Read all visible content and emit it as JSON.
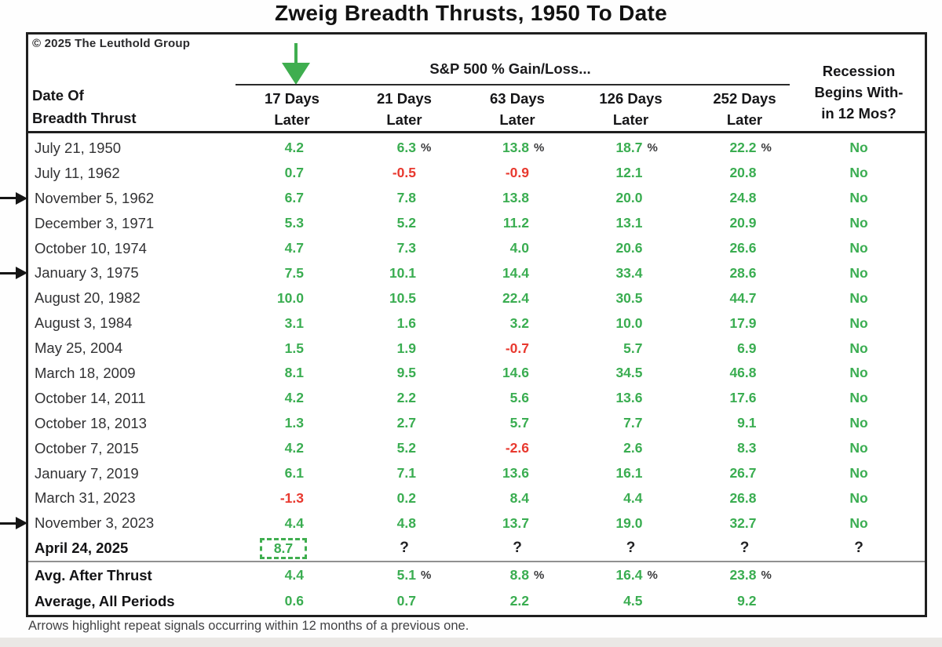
{
  "page": {
    "title": "Zweig Breadth Thrusts, 1950 To Date",
    "copyright": "© 2025 The Leuthold Group",
    "footnote": "Arrows highlight repeat signals occurring within 12 months of a previous one."
  },
  "colors": {
    "green": "#3aad51",
    "red": "#e8392f",
    "arrow_green": "#3fae4f"
  },
  "table": {
    "row_header": [
      "Date Of",
      "Breadth Thrust"
    ],
    "group_header": "S&P 500 % Gain/Loss...",
    "day_columns": [
      [
        "17 Days",
        "Later"
      ],
      [
        "21 Days",
        "Later"
      ],
      [
        "63 Days",
        "Later"
      ],
      [
        "126 Days",
        "Later"
      ],
      [
        "252 Days",
        "Later"
      ]
    ],
    "recession_header": [
      "Recession",
      "Begins With-",
      "in 12 Mos?"
    ],
    "rows": [
      {
        "date": "July 21, 1950",
        "arrow": false,
        "bold": false,
        "boxed": false,
        "values": [
          "4.2",
          "6.3",
          "13.8",
          "18.7",
          "22.2"
        ],
        "pct": [
          false,
          true,
          true,
          true,
          true
        ],
        "recession": "No"
      },
      {
        "date": "July 11, 1962",
        "arrow": false,
        "bold": false,
        "boxed": false,
        "values": [
          "0.7",
          "-0.5",
          "-0.9",
          "12.1",
          "20.8"
        ],
        "pct": [
          false,
          false,
          false,
          false,
          false
        ],
        "recession": "No"
      },
      {
        "date": "November 5, 1962",
        "arrow": true,
        "bold": false,
        "boxed": false,
        "values": [
          "6.7",
          "7.8",
          "13.8",
          "20.0",
          "24.8"
        ],
        "pct": [
          false,
          false,
          false,
          false,
          false
        ],
        "recession": "No"
      },
      {
        "date": "December 3, 1971",
        "arrow": false,
        "bold": false,
        "boxed": false,
        "values": [
          "5.3",
          "5.2",
          "11.2",
          "13.1",
          "20.9"
        ],
        "pct": [
          false,
          false,
          false,
          false,
          false
        ],
        "recession": "No"
      },
      {
        "date": "October 10, 1974",
        "arrow": false,
        "bold": false,
        "boxed": false,
        "values": [
          "4.7",
          "7.3",
          "4.0",
          "20.6",
          "26.6"
        ],
        "pct": [
          false,
          false,
          false,
          false,
          false
        ],
        "recession": "No"
      },
      {
        "date": "January 3, 1975",
        "arrow": true,
        "bold": false,
        "boxed": false,
        "values": [
          "7.5",
          "10.1",
          "14.4",
          "33.4",
          "28.6"
        ],
        "pct": [
          false,
          false,
          false,
          false,
          false
        ],
        "recession": "No"
      },
      {
        "date": "August 20, 1982",
        "arrow": false,
        "bold": false,
        "boxed": false,
        "values": [
          "10.0",
          "10.5",
          "22.4",
          "30.5",
          "44.7"
        ],
        "pct": [
          false,
          false,
          false,
          false,
          false
        ],
        "recession": "No"
      },
      {
        "date": "August 3, 1984",
        "arrow": false,
        "bold": false,
        "boxed": false,
        "values": [
          "3.1",
          "1.6",
          "3.2",
          "10.0",
          "17.9"
        ],
        "pct": [
          false,
          false,
          false,
          false,
          false
        ],
        "recession": "No"
      },
      {
        "date": "May 25, 2004",
        "arrow": false,
        "bold": false,
        "boxed": false,
        "values": [
          "1.5",
          "1.9",
          "-0.7",
          "5.7",
          "6.9"
        ],
        "pct": [
          false,
          false,
          false,
          false,
          false
        ],
        "recession": "No"
      },
      {
        "date": "March 18, 2009",
        "arrow": false,
        "bold": false,
        "boxed": false,
        "values": [
          "8.1",
          "9.5",
          "14.6",
          "34.5",
          "46.8"
        ],
        "pct": [
          false,
          false,
          false,
          false,
          false
        ],
        "recession": "No"
      },
      {
        "date": "October 14, 2011",
        "arrow": false,
        "bold": false,
        "boxed": false,
        "values": [
          "4.2",
          "2.2",
          "5.6",
          "13.6",
          "17.6"
        ],
        "pct": [
          false,
          false,
          false,
          false,
          false
        ],
        "recession": "No"
      },
      {
        "date": "October 18, 2013",
        "arrow": false,
        "bold": false,
        "boxed": false,
        "values": [
          "1.3",
          "2.7",
          "5.7",
          "7.7",
          "9.1"
        ],
        "pct": [
          false,
          false,
          false,
          false,
          false
        ],
        "recession": "No"
      },
      {
        "date": "October 7, 2015",
        "arrow": false,
        "bold": false,
        "boxed": false,
        "values": [
          "4.2",
          "5.2",
          "-2.6",
          "2.6",
          "8.3"
        ],
        "pct": [
          false,
          false,
          false,
          false,
          false
        ],
        "recession": "No"
      },
      {
        "date": "January 7, 2019",
        "arrow": false,
        "bold": false,
        "boxed": false,
        "values": [
          "6.1",
          "7.1",
          "13.6",
          "16.1",
          "26.7"
        ],
        "pct": [
          false,
          false,
          false,
          false,
          false
        ],
        "recession": "No"
      },
      {
        "date": "March 31, 2023",
        "arrow": false,
        "bold": false,
        "boxed": false,
        "values": [
          "-1.3",
          "0.2",
          "8.4",
          "4.4",
          "26.8"
        ],
        "pct": [
          false,
          false,
          false,
          false,
          false
        ],
        "recession": "No"
      },
      {
        "date": "November 3, 2023",
        "arrow": true,
        "bold": false,
        "boxed": false,
        "values": [
          "4.4",
          "4.8",
          "13.7",
          "19.0",
          "32.7"
        ],
        "pct": [
          false,
          false,
          false,
          false,
          false
        ],
        "recession": "No"
      },
      {
        "date": "April 24, 2025",
        "arrow": false,
        "bold": true,
        "boxed": true,
        "values": [
          "8.7",
          "?",
          "?",
          "?",
          "?"
        ],
        "pct": [
          false,
          false,
          false,
          false,
          false
        ],
        "recession": "?"
      }
    ],
    "summary_rows": [
      {
        "label": "Avg. After Thrust",
        "values": [
          "4.4",
          "5.1",
          "8.8",
          "16.4",
          "23.8"
        ],
        "pct": [
          false,
          true,
          true,
          true,
          true
        ],
        "recession": ""
      },
      {
        "label": "Average, All Periods",
        "values": [
          "0.6",
          "0.7",
          "2.2",
          "4.5",
          "9.2"
        ],
        "pct": [
          false,
          false,
          false,
          false,
          false
        ],
        "recession": ""
      }
    ]
  },
  "chart_data": {
    "type": "table",
    "title": "Zweig Breadth Thrusts, 1950 To Date",
    "group_header": "S&P 500 % Gain/Loss...",
    "columns": [
      "Date Of Breadth Thrust",
      "17 Days Later",
      "21 Days Later",
      "63 Days Later",
      "126 Days Later",
      "252 Days Later",
      "Recession Begins With-in 12 Mos?"
    ],
    "rows": [
      [
        "July 21, 1950",
        4.2,
        6.3,
        13.8,
        18.7,
        22.2,
        "No"
      ],
      [
        "July 11, 1962",
        0.7,
        -0.5,
        -0.9,
        12.1,
        20.8,
        "No"
      ],
      [
        "November 5, 1962",
        6.7,
        7.8,
        13.8,
        20.0,
        24.8,
        "No"
      ],
      [
        "December 3, 1971",
        5.3,
        5.2,
        11.2,
        13.1,
        20.9,
        "No"
      ],
      [
        "October 10, 1974",
        4.7,
        7.3,
        4.0,
        20.6,
        26.6,
        "No"
      ],
      [
        "January 3, 1975",
        7.5,
        10.1,
        14.4,
        33.4,
        28.6,
        "No"
      ],
      [
        "August 20, 1982",
        10.0,
        10.5,
        22.4,
        30.5,
        44.7,
        "No"
      ],
      [
        "August 3, 1984",
        3.1,
        1.6,
        3.2,
        10.0,
        17.9,
        "No"
      ],
      [
        "May 25, 2004",
        1.5,
        1.9,
        -0.7,
        5.7,
        6.9,
        "No"
      ],
      [
        "March 18, 2009",
        8.1,
        9.5,
        14.6,
        34.5,
        46.8,
        "No"
      ],
      [
        "October 14, 2011",
        4.2,
        2.2,
        5.6,
        13.6,
        17.6,
        "No"
      ],
      [
        "October 18, 2013",
        1.3,
        2.7,
        5.7,
        7.7,
        9.1,
        "No"
      ],
      [
        "October 7, 2015",
        4.2,
        5.2,
        -2.6,
        2.6,
        8.3,
        "No"
      ],
      [
        "January 7, 2019",
        6.1,
        7.1,
        13.6,
        16.1,
        26.7,
        "No"
      ],
      [
        "March 31, 2023",
        -1.3,
        0.2,
        8.4,
        4.4,
        26.8,
        "No"
      ],
      [
        "November 3, 2023",
        4.4,
        4.8,
        13.7,
        19.0,
        32.7,
        "No"
      ],
      [
        "April 24, 2025",
        8.7,
        "?",
        "?",
        "?",
        "?",
        "?"
      ],
      [
        "Avg. After Thrust",
        4.4,
        5.1,
        8.8,
        16.4,
        23.8,
        ""
      ],
      [
        "Average, All Periods",
        0.6,
        0.7,
        2.2,
        4.5,
        9.2,
        ""
      ]
    ],
    "repeat_signal_rows": [
      "November 5, 1962",
      "January 3, 1975",
      "November 3, 2023"
    ],
    "highlighted_cell": {
      "row": "April 24, 2025",
      "column": "17 Days Later",
      "value": 8.7
    },
    "notes": "Arrows highlight repeat signals occurring within 12 months of a previous one."
  }
}
